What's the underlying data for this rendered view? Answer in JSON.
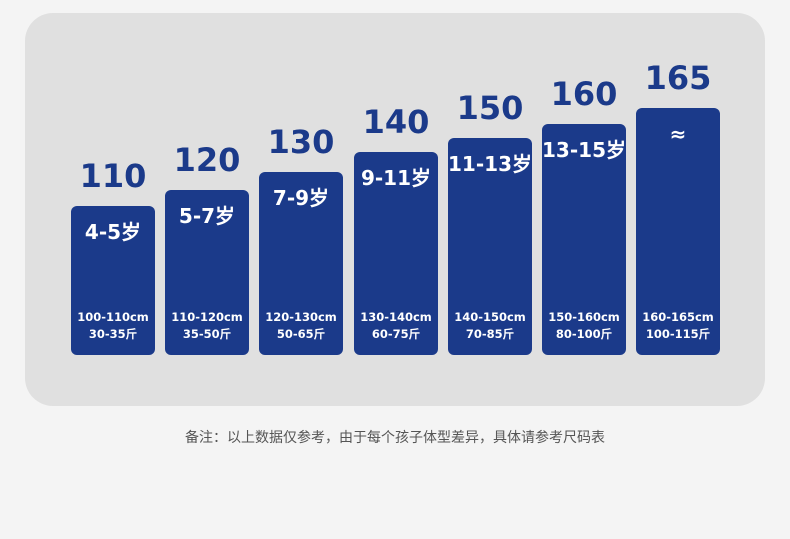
{
  "colors": {
    "bar": "#1b3a8a",
    "panel": "#e0e0e0",
    "background": "#f4f4f4"
  },
  "sizes": [
    {
      "size": "110",
      "age": "4-5岁",
      "height": "100-110cm",
      "weight": "30-35斤"
    },
    {
      "size": "120",
      "age": "5-7岁",
      "height": "110-120cm",
      "weight": "35-50斤"
    },
    {
      "size": "130",
      "age": "7-9岁",
      "height": "120-130cm",
      "weight": "50-65斤"
    },
    {
      "size": "140",
      "age": "9-11岁",
      "height": "130-140cm",
      "weight": "60-75斤"
    },
    {
      "size": "150",
      "age": "11-13岁",
      "height": "140-150cm",
      "weight": "70-85斤"
    },
    {
      "size": "160",
      "age": "13-15岁",
      "height": "150-160cm",
      "weight": "80-100斤"
    },
    {
      "size": "165",
      "age": "≈",
      "height": "160-165cm",
      "weight": "100-115斤"
    }
  ],
  "note": "备注：以上数据仅参考，由于每个孩子体型差异，具体请参考尺码表"
}
